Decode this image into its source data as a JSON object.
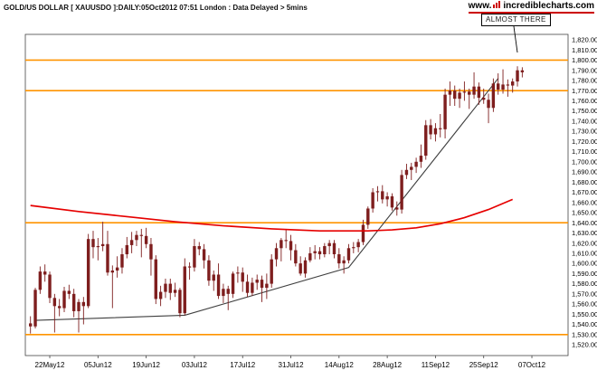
{
  "header": {
    "title": "GOLD/US DOLLAR [ XAUUSDO ]:DAILY:05Oct2012 07:51 London : Data Delayed > 5mins",
    "logo": {
      "www": "www.",
      "name": "incrediblecharts",
      "tld": ".com",
      "accent_color": "#cc0000"
    }
  },
  "annotation": {
    "label": "ALMOST THERE"
  },
  "chart_data": {
    "type": "candlestick",
    "title": "GOLD/US DOLLAR",
    "symbol": "XAUUSDO",
    "interval": "DAILY",
    "as_of": "05Oct2012 07:51 London",
    "data_note": "Data Delayed > 5mins",
    "y_axis": {
      "min": 1520,
      "max": 1820,
      "step": 10,
      "side": "right",
      "format": "1,234.00"
    },
    "x_ticks": [
      [
        4,
        "22May12"
      ],
      [
        14,
        "05Jun12"
      ],
      [
        24,
        "19Jun12"
      ],
      [
        34,
        "03Jul12"
      ],
      [
        44,
        "17Jul12"
      ],
      [
        54,
        "31Jul12"
      ],
      [
        64,
        "14Aug12"
      ],
      [
        74,
        "28Aug12"
      ],
      [
        84,
        "11Sep12"
      ],
      [
        94,
        "25Sep12"
      ],
      [
        104,
        "07Oct12"
      ]
    ],
    "support_resistance": {
      "color": "#ff9400",
      "levels": [
        1800,
        1770,
        1640,
        1530
      ]
    },
    "ma_line": {
      "label": "moving-average",
      "color": "#e60000",
      "points": [
        [
          0,
          1657
        ],
        [
          10,
          1651
        ],
        [
          20,
          1646
        ],
        [
          30,
          1641
        ],
        [
          40,
          1637
        ],
        [
          50,
          1634
        ],
        [
          60,
          1632
        ],
        [
          70,
          1632
        ],
        [
          75,
          1633
        ],
        [
          80,
          1635
        ],
        [
          85,
          1639
        ],
        [
          90,
          1645
        ],
        [
          95,
          1653
        ],
        [
          100,
          1663
        ]
      ]
    },
    "trendline": {
      "color": "#3f3f3f",
      "points": [
        [
          1,
          1544
        ],
        [
          32,
          1549
        ],
        [
          66,
          1596
        ],
        [
          97,
          1782
        ]
      ]
    },
    "candle_color": "#7e1e1e",
    "axis_color": "#444444",
    "candle_format": [
      "date",
      "open",
      "high",
      "low",
      "close"
    ],
    "candles": [
      [
        "16May12",
        1541,
        1548,
        1531,
        1538
      ],
      [
        "17May12",
        1538,
        1576,
        1536,
        1574
      ],
      [
        "18May12",
        1574,
        1597,
        1570,
        1592
      ],
      [
        "21May12",
        1592,
        1599,
        1582,
        1589
      ],
      [
        "22May12",
        1589,
        1592,
        1561,
        1566
      ],
      [
        "23May12",
        1566,
        1570,
        1532,
        1558
      ],
      [
        "24May12",
        1558,
        1565,
        1548,
        1556
      ],
      [
        "25May12",
        1556,
        1577,
        1552,
        1573
      ],
      [
        "28May12",
        1573,
        1579,
        1565,
        1570
      ],
      [
        "29May12",
        1570,
        1575,
        1547,
        1553
      ],
      [
        "30May12",
        1553,
        1565,
        1532,
        1562
      ],
      [
        "31May12",
        1562,
        1567,
        1540,
        1558
      ],
      [
        "01Jun12",
        1558,
        1629,
        1556,
        1624
      ],
      [
        "04Jun12",
        1624,
        1632,
        1605,
        1616
      ],
      [
        "05Jun12",
        1616,
        1625,
        1603,
        1617
      ],
      [
        "06Jun12",
        1617,
        1641,
        1612,
        1619
      ],
      [
        "07Jun12",
        1619,
        1632,
        1588,
        1591
      ],
      [
        "08Jun12",
        1591,
        1598,
        1556,
        1593
      ],
      [
        "11Jun12",
        1593,
        1607,
        1586,
        1596
      ],
      [
        "12Jun12",
        1596,
        1615,
        1590,
        1609
      ],
      [
        "13Jun12",
        1609,
        1626,
        1605,
        1618
      ],
      [
        "14Jun12",
        1618,
        1631,
        1610,
        1623
      ],
      [
        "15Jun12",
        1623,
        1632,
        1617,
        1628
      ],
      [
        "18Jun12",
        1628,
        1634,
        1606,
        1627
      ],
      [
        "19Jun12",
        1627,
        1635,
        1615,
        1619
      ],
      [
        "20Jun12",
        1619,
        1625,
        1588,
        1604
      ],
      [
        "21Jun12",
        1604,
        1608,
        1560,
        1565
      ],
      [
        "22Jun12",
        1565,
        1578,
        1558,
        1572
      ],
      [
        "25Jun12",
        1572,
        1585,
        1566,
        1580
      ],
      [
        "26Jun12",
        1580,
        1585,
        1564,
        1571
      ],
      [
        "27Jun12",
        1571,
        1581,
        1567,
        1574
      ],
      [
        "28Jun12",
        1574,
        1576,
        1547,
        1551
      ],
      [
        "29Jun12",
        1551,
        1605,
        1549,
        1597
      ],
      [
        "02Jul12",
        1597,
        1601,
        1584,
        1596
      ],
      [
        "03Jul12",
        1596,
        1624,
        1592,
        1617
      ],
      [
        "04Jul12",
        1617,
        1621,
        1608,
        1614
      ],
      [
        "05Jul12",
        1614,
        1619,
        1595,
        1603
      ],
      [
        "06Jul12",
        1603,
        1608,
        1578,
        1583
      ],
      [
        "09Jul12",
        1583,
        1593,
        1573,
        1589
      ],
      [
        "10Jul12",
        1589,
        1600,
        1565,
        1568
      ],
      [
        "11Jul12",
        1568,
        1580,
        1561,
        1575
      ],
      [
        "12Jul12",
        1575,
        1578,
        1554,
        1570
      ],
      [
        "13Jul12",
        1570,
        1592,
        1566,
        1590
      ],
      [
        "16Jul12",
        1590,
        1597,
        1581,
        1591
      ],
      [
        "17Jul12",
        1591,
        1596,
        1572,
        1582
      ],
      [
        "18Jul12",
        1582,
        1589,
        1567,
        1571
      ],
      [
        "19Jul12",
        1571,
        1586,
        1568,
        1581
      ],
      [
        "20Jul12",
        1581,
        1589,
        1574,
        1584
      ],
      [
        "23Jul12",
        1584,
        1588,
        1562,
        1576
      ],
      [
        "24Jul12",
        1576,
        1590,
        1565,
        1580
      ],
      [
        "25Jul12",
        1580,
        1609,
        1576,
        1604
      ],
      [
        "26Jul12",
        1604,
        1620,
        1597,
        1615
      ],
      [
        "27Jul12",
        1615,
        1625,
        1602,
        1623
      ],
      [
        "30Jul12",
        1623,
        1633,
        1615,
        1622
      ],
      [
        "31Jul12",
        1622,
        1628,
        1603,
        1613
      ],
      [
        "01Aug12",
        1613,
        1619,
        1597,
        1600
      ],
      [
        "02Aug12",
        1600,
        1607,
        1588,
        1590
      ],
      [
        "03Aug12",
        1590,
        1606,
        1586,
        1603
      ],
      [
        "06Aug12",
        1603,
        1616,
        1601,
        1610
      ],
      [
        "07Aug12",
        1610,
        1618,
        1604,
        1612
      ],
      [
        "08Aug12",
        1612,
        1616,
        1604,
        1609
      ],
      [
        "09Aug12",
        1609,
        1620,
        1606,
        1617
      ],
      [
        "10Aug12",
        1617,
        1623,
        1609,
        1620
      ],
      [
        "13Aug12",
        1620,
        1623,
        1605,
        1609
      ],
      [
        "14Aug12",
        1609,
        1615,
        1595,
        1600
      ],
      [
        "15Aug12",
        1600,
        1607,
        1590,
        1603
      ],
      [
        "16Aug12",
        1603,
        1619,
        1600,
        1615
      ],
      [
        "17Aug12",
        1615,
        1621,
        1610,
        1616
      ],
      [
        "20Aug12",
        1616,
        1624,
        1611,
        1621
      ],
      [
        "21Aug12",
        1621,
        1643,
        1618,
        1638
      ],
      [
        "22Aug12",
        1638,
        1656,
        1634,
        1654
      ],
      [
        "23Aug12",
        1654,
        1674,
        1650,
        1670
      ],
      [
        "24Aug12",
        1670,
        1676,
        1661,
        1671
      ],
      [
        "27Aug12",
        1671,
        1677,
        1659,
        1663
      ],
      [
        "28Aug12",
        1663,
        1670,
        1656,
        1666
      ],
      [
        "29Aug12",
        1666,
        1669,
        1652,
        1655
      ],
      [
        "30Aug12",
        1655,
        1661,
        1647,
        1653
      ],
      [
        "31Aug12",
        1653,
        1692,
        1649,
        1687
      ],
      [
        "03Sep12",
        1687,
        1698,
        1683,
        1692
      ],
      [
        "04Sep12",
        1692,
        1699,
        1682,
        1695
      ],
      [
        "05Sep12",
        1695,
        1704,
        1689,
        1700
      ],
      [
        "06Sep12",
        1700,
        1717,
        1694,
        1706
      ],
      [
        "07Sep12",
        1706,
        1741,
        1702,
        1736
      ],
      [
        "10Sep12",
        1736,
        1742,
        1722,
        1727
      ],
      [
        "11Sep12",
        1727,
        1738,
        1720,
        1733
      ],
      [
        "12Sep12",
        1733,
        1747,
        1724,
        1732
      ],
      [
        "13Sep12",
        1732,
        1772,
        1723,
        1766
      ],
      [
        "14Sep12",
        1766,
        1779,
        1755,
        1770
      ],
      [
        "17Sep12",
        1770,
        1775,
        1755,
        1762
      ],
      [
        "18Sep12",
        1762,
        1772,
        1753,
        1768
      ],
      [
        "19Sep12",
        1768,
        1779,
        1760,
        1769
      ],
      [
        "20Sep12",
        1769,
        1772,
        1752,
        1766
      ],
      [
        "21Sep12",
        1766,
        1788,
        1762,
        1774
      ],
      [
        "24Sep12",
        1774,
        1778,
        1756,
        1763
      ],
      [
        "25Sep12",
        1763,
        1772,
        1757,
        1761
      ],
      [
        "26Sep12",
        1761,
        1767,
        1738,
        1753
      ],
      [
        "27Sep12",
        1753,
        1782,
        1749,
        1777
      ],
      [
        "28Sep12",
        1777,
        1787,
        1766,
        1771
      ],
      [
        "01Oct12",
        1771,
        1791,
        1767,
        1776
      ],
      [
        "02Oct12",
        1776,
        1781,
        1764,
        1775
      ],
      [
        "03Oct12",
        1775,
        1782,
        1768,
        1779
      ],
      [
        "04Oct12",
        1779,
        1794,
        1774,
        1790
      ],
      [
        "05Oct12",
        1790,
        1793,
        1783,
        1788
      ]
    ]
  }
}
